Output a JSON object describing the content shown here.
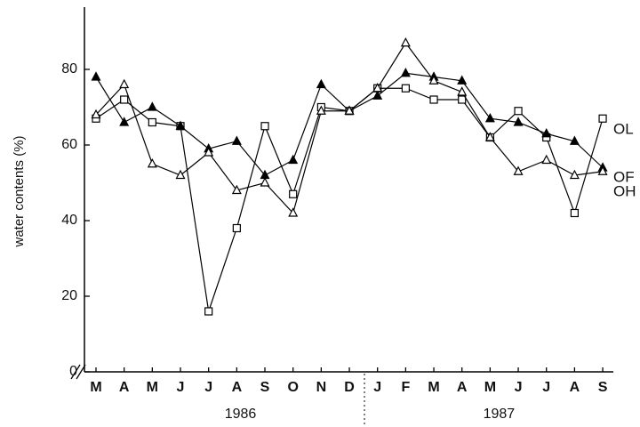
{
  "chart_data": {
    "type": "line",
    "y_label": "water contents (%)",
    "categories": [
      "M",
      "A",
      "M",
      "J",
      "J",
      "A",
      "S",
      "O",
      "N",
      "D",
      "J",
      "F",
      "M",
      "A",
      "M",
      "J",
      "J",
      "A",
      "S"
    ],
    "year_labels": [
      "1986",
      "1987"
    ],
    "series": [
      {
        "name": "OL",
        "color": "#000000",
        "marker": "square",
        "filled": false,
        "values": [
          67,
          72,
          66,
          65,
          16,
          38,
          65,
          47,
          70,
          69,
          75,
          75,
          72,
          72,
          62,
          69,
          62,
          42,
          67
        ]
      },
      {
        "name": "OF",
        "color": "#000000",
        "marker": "triangle",
        "filled": true,
        "values": [
          78,
          66,
          70,
          65,
          59,
          61,
          52,
          56,
          76,
          69,
          73,
          79,
          78,
          77,
          67,
          66,
          63,
          61,
          54
        ]
      },
      {
        "name": "OH",
        "color": "#000000",
        "marker": "triangle",
        "filled": false,
        "values": [
          68,
          76,
          55,
          52,
          58,
          48,
          50,
          42,
          69,
          69,
          75,
          87,
          77,
          74,
          62,
          53,
          56,
          52,
          53
        ]
      }
    ],
    "ylim": [
      0,
      96
    ],
    "yticks": [
      0,
      20,
      40,
      60,
      80
    ],
    "grid": false
  }
}
